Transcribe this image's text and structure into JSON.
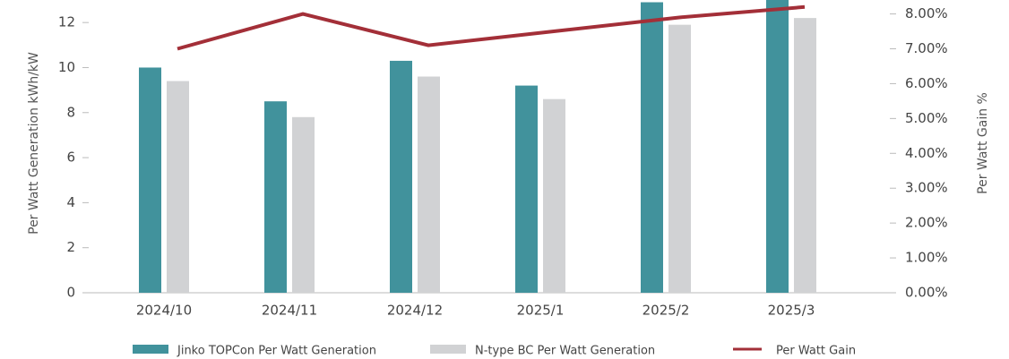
{
  "chart_data": {
    "type": "bar",
    "y_label": "Per Watt Generation kWh/kW",
    "y2_label": "Per Watt Gain %",
    "categories": [
      "2024/10",
      "2024/11",
      "2024/12",
      "2025/1",
      "2025/2",
      "2025/3"
    ],
    "series": [
      {
        "name": "Jinko TOPCon Per Watt Generation",
        "color": "#41929c",
        "values": [
          10.0,
          8.5,
          10.3,
          9.2,
          12.9,
          13.2
        ]
      },
      {
        "name": "N-type BC Per Watt Generation",
        "color": "#d1d2d4",
        "values": [
          9.4,
          7.8,
          9.6,
          8.6,
          11.9,
          12.2
        ]
      },
      {
        "name": "Per Watt Gain",
        "color": "#a32f38",
        "axis": "y2",
        "type": "line",
        "values": [
          7.0,
          8.0,
          7.1,
          7.5,
          7.9,
          8.2
        ]
      }
    ],
    "ylim": [
      0,
      13
    ],
    "yticks": [
      0,
      2,
      4,
      6,
      8,
      10,
      12
    ],
    "y2lim": [
      0,
      8.4
    ],
    "y2ticks": [
      {
        "value": 0,
        "label": "0.00%"
      },
      {
        "value": 1,
        "label": "1.00%"
      },
      {
        "value": 2,
        "label": "2.00%"
      },
      {
        "value": 3,
        "label": "3.00%"
      },
      {
        "value": 4,
        "label": "4.00%"
      },
      {
        "value": 5,
        "label": "5.00%"
      },
      {
        "value": 6,
        "label": "6.00%"
      },
      {
        "value": 7,
        "label": "7.00%"
      },
      {
        "value": 8,
        "label": "8.00%"
      }
    ]
  }
}
